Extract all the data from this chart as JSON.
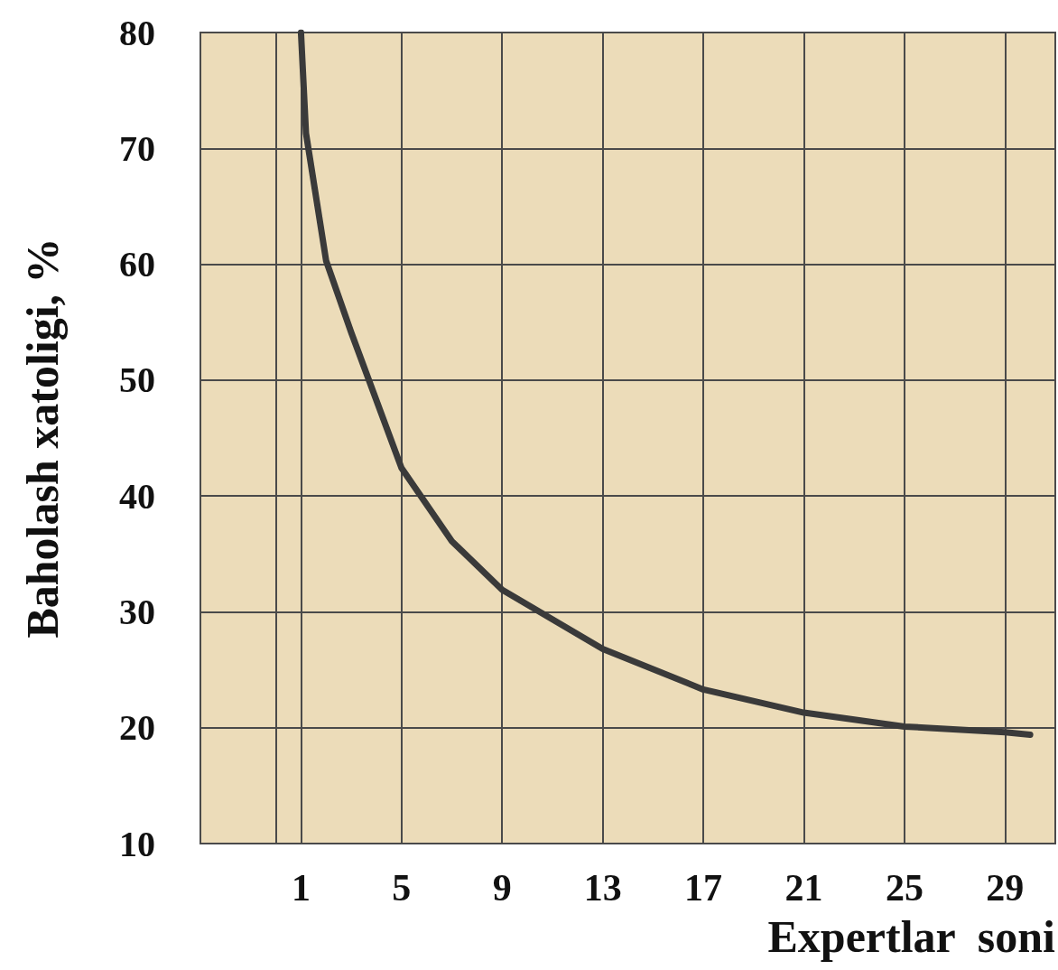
{
  "chart_data": {
    "type": "line",
    "xlabel": "Expertlar  soni",
    "ylabel": "Baholash xatoligi, %",
    "x": [
      1,
      1.2,
      2,
      3,
      5,
      7,
      9,
      13,
      17,
      21,
      25,
      29,
      30
    ],
    "series": [
      {
        "color": "#3a3a3a",
        "values": [
          80,
          71.3,
          60.3,
          54.1,
          42.4,
          36.1,
          31.9,
          26.8,
          23.3,
          21.3,
          20.1,
          19.6,
          19.4
        ]
      }
    ],
    "xlim": [
      -3,
      31
    ],
    "xticks": [
      1,
      5,
      9,
      13,
      17,
      21,
      25,
      29
    ],
    "ylim": [
      10,
      80
    ],
    "yticks": [
      10,
      20,
      30,
      40,
      50,
      60,
      70,
      80
    ],
    "grid": true,
    "marker": "none",
    "line_style": "solid"
  }
}
